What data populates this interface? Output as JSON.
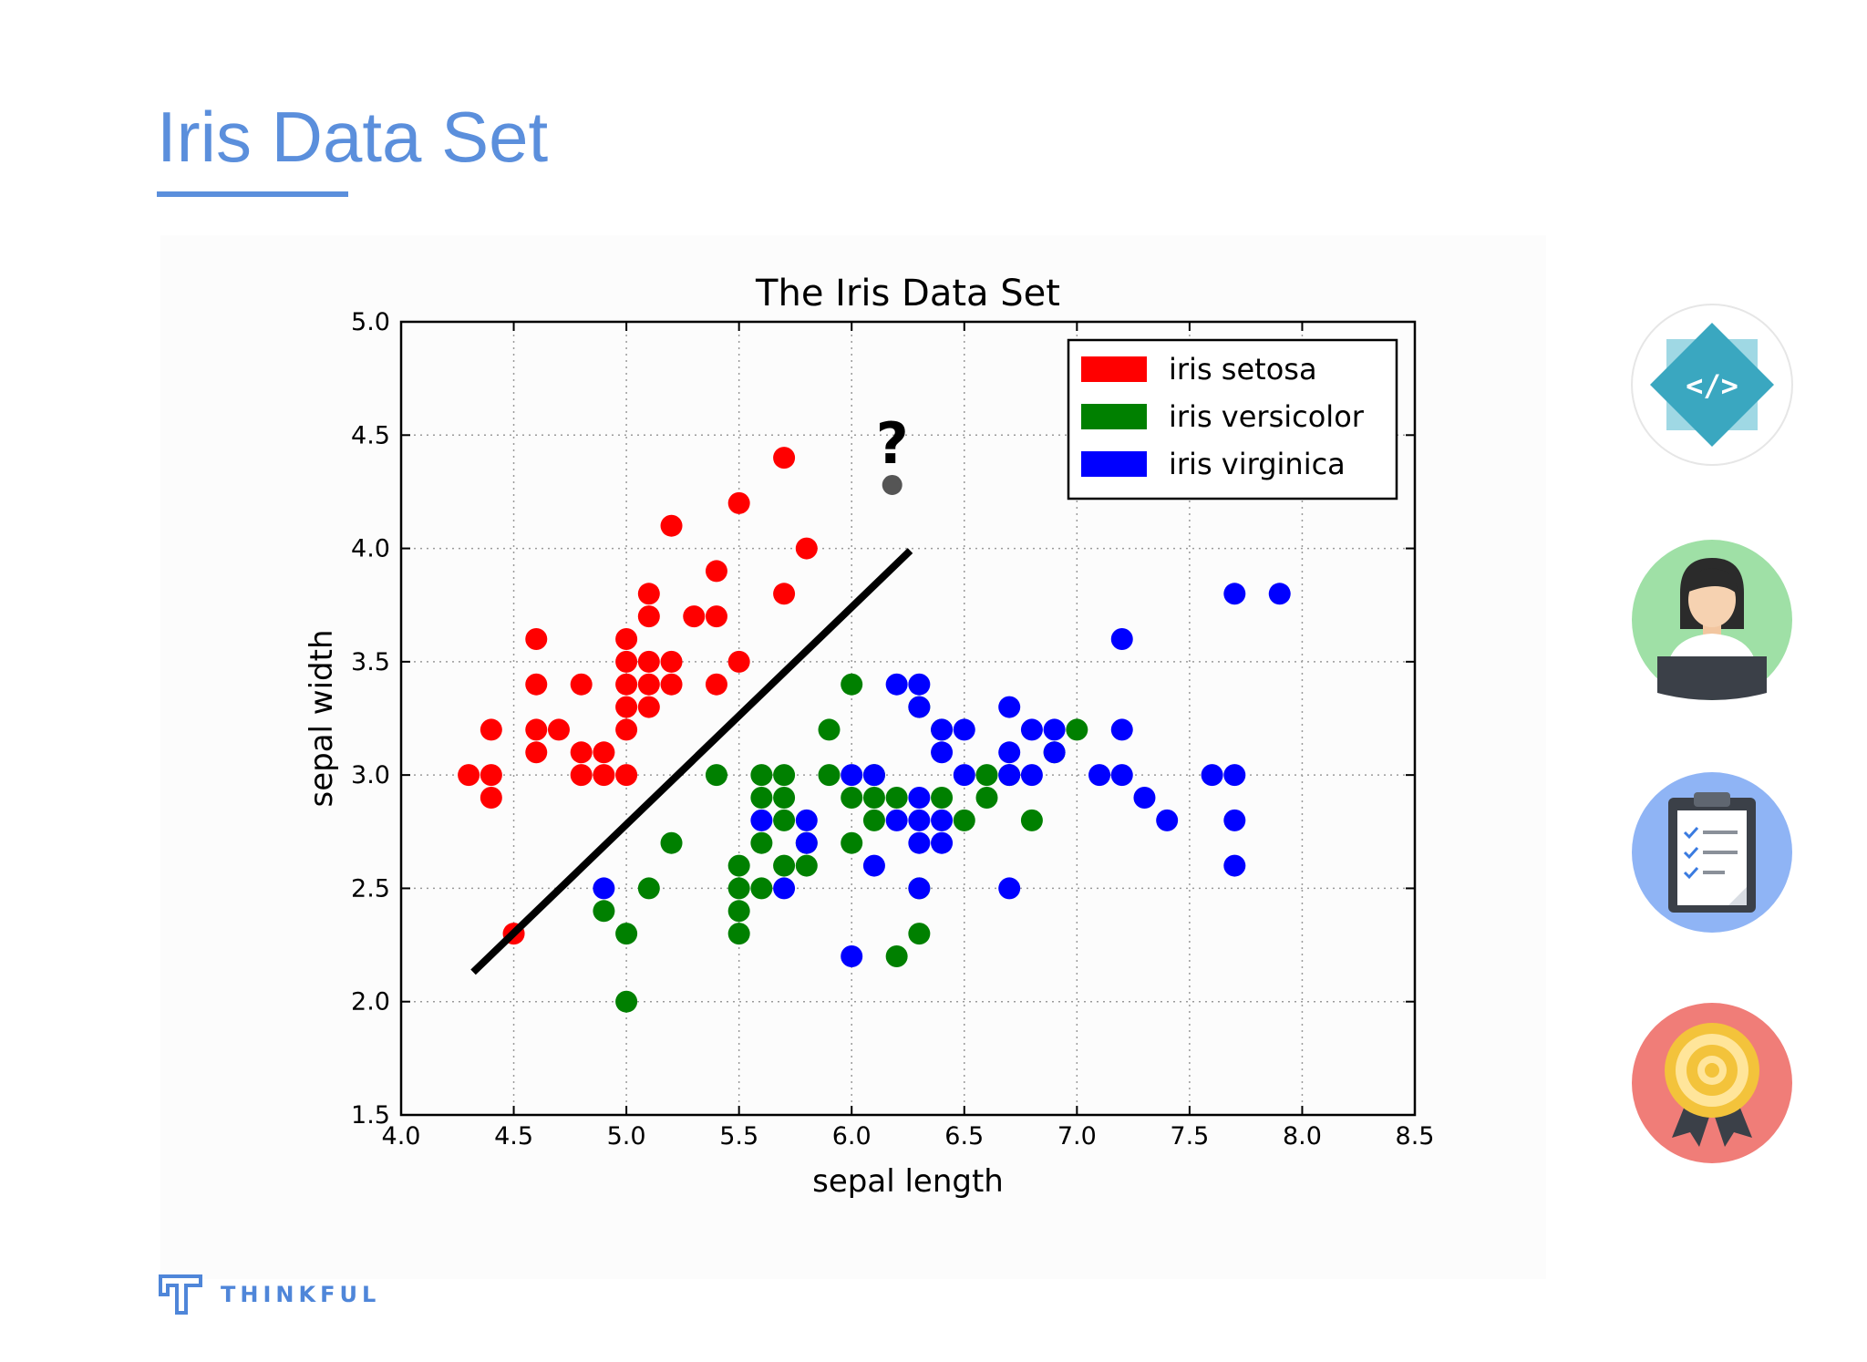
{
  "slide": {
    "title": "Iris Data Set",
    "accent_color": "#5b8fdc",
    "brand_name": "THINKFUL",
    "brand_icon": "thinkful-logo-icon"
  },
  "side_icons": [
    {
      "name": "code-icon",
      "bg": "#ffffff"
    },
    {
      "name": "student-laptop-icon",
      "bg": "#9fe0a6"
    },
    {
      "name": "clipboard-checklist-icon",
      "bg": "#8fb4f5"
    },
    {
      "name": "award-badge-icon",
      "bg": "#f07d78"
    }
  ],
  "chart_data": {
    "type": "scatter",
    "title": "The Iris Data Set",
    "xlabel": "sepal length",
    "ylabel": "sepal width",
    "xlim": [
      4.0,
      8.5
    ],
    "ylim": [
      1.5,
      5.0
    ],
    "xticks": [
      "4.0",
      "4.5",
      "5.0",
      "5.5",
      "6.0",
      "6.5",
      "7.0",
      "7.5",
      "8.0",
      "8.5"
    ],
    "yticks": [
      "1.5",
      "2.0",
      "2.5",
      "3.0",
      "3.5",
      "4.0",
      "4.5",
      "5.0"
    ],
    "grid": true,
    "legend_position": "top-right",
    "series": [
      {
        "name": "iris setosa",
        "color": "#ff0000",
        "points": [
          [
            4.3,
            3.0
          ],
          [
            4.4,
            3.0
          ],
          [
            4.4,
            2.9
          ],
          [
            4.4,
            3.2
          ],
          [
            4.5,
            2.3
          ],
          [
            4.6,
            3.1
          ],
          [
            4.6,
            3.2
          ],
          [
            4.6,
            3.4
          ],
          [
            4.6,
            3.6
          ],
          [
            4.7,
            3.2
          ],
          [
            4.8,
            3.0
          ],
          [
            4.8,
            3.1
          ],
          [
            4.8,
            3.4
          ],
          [
            4.9,
            3.0
          ],
          [
            4.9,
            3.1
          ],
          [
            5.0,
            3.0
          ],
          [
            5.0,
            3.2
          ],
          [
            5.0,
            3.3
          ],
          [
            5.0,
            3.4
          ],
          [
            5.0,
            3.5
          ],
          [
            5.0,
            3.6
          ],
          [
            5.1,
            3.3
          ],
          [
            5.1,
            3.4
          ],
          [
            5.1,
            3.5
          ],
          [
            5.1,
            3.7
          ],
          [
            5.1,
            3.8
          ],
          [
            5.2,
            3.4
          ],
          [
            5.2,
            3.5
          ],
          [
            5.2,
            4.1
          ],
          [
            5.3,
            3.7
          ],
          [
            5.4,
            3.4
          ],
          [
            5.4,
            3.7
          ],
          [
            5.4,
            3.9
          ],
          [
            5.5,
            3.5
          ],
          [
            5.5,
            4.2
          ],
          [
            5.7,
            3.8
          ],
          [
            5.7,
            4.4
          ],
          [
            5.8,
            4.0
          ]
        ]
      },
      {
        "name": "iris versicolor",
        "color": "#008000",
        "points": [
          [
            4.9,
            2.4
          ],
          [
            5.0,
            2.0
          ],
          [
            5.0,
            2.3
          ],
          [
            5.1,
            2.5
          ],
          [
            5.2,
            2.7
          ],
          [
            5.4,
            3.0
          ],
          [
            5.5,
            2.3
          ],
          [
            5.5,
            2.4
          ],
          [
            5.5,
            2.5
          ],
          [
            5.5,
            2.6
          ],
          [
            5.6,
            2.5
          ],
          [
            5.6,
            2.7
          ],
          [
            5.6,
            2.9
          ],
          [
            5.6,
            3.0
          ],
          [
            5.7,
            2.6
          ],
          [
            5.7,
            2.8
          ],
          [
            5.7,
            2.9
          ],
          [
            5.7,
            3.0
          ],
          [
            5.8,
            2.6
          ],
          [
            5.8,
            2.7
          ],
          [
            5.9,
            3.0
          ],
          [
            5.9,
            3.2
          ],
          [
            6.0,
            2.7
          ],
          [
            6.0,
            2.9
          ],
          [
            6.0,
            3.4
          ],
          [
            6.1,
            2.8
          ],
          [
            6.1,
            2.9
          ],
          [
            6.1,
            3.0
          ],
          [
            6.2,
            2.2
          ],
          [
            6.2,
            2.9
          ],
          [
            6.3,
            2.3
          ],
          [
            6.3,
            2.5
          ],
          [
            6.3,
            3.3
          ],
          [
            6.4,
            2.9
          ],
          [
            6.4,
            3.2
          ],
          [
            6.5,
            2.8
          ],
          [
            6.6,
            2.9
          ],
          [
            6.6,
            3.0
          ],
          [
            6.7,
            3.0
          ],
          [
            6.8,
            2.8
          ],
          [
            6.9,
            3.1
          ],
          [
            7.0,
            3.2
          ]
        ]
      },
      {
        "name": "iris virginica",
        "color": "#0000ff",
        "points": [
          [
            4.9,
            2.5
          ],
          [
            5.6,
            2.8
          ],
          [
            5.7,
            2.5
          ],
          [
            5.8,
            2.7
          ],
          [
            5.8,
            2.8
          ],
          [
            6.0,
            2.2
          ],
          [
            6.0,
            3.0
          ],
          [
            6.1,
            2.6
          ],
          [
            6.1,
            3.0
          ],
          [
            6.2,
            2.8
          ],
          [
            6.2,
            3.4
          ],
          [
            6.3,
            2.5
          ],
          [
            6.3,
            2.7
          ],
          [
            6.3,
            2.8
          ],
          [
            6.3,
            2.9
          ],
          [
            6.3,
            3.3
          ],
          [
            6.3,
            3.4
          ],
          [
            6.4,
            2.7
          ],
          [
            6.4,
            2.8
          ],
          [
            6.4,
            3.1
          ],
          [
            6.4,
            3.2
          ],
          [
            6.5,
            3.0
          ],
          [
            6.5,
            3.2
          ],
          [
            6.7,
            2.5
          ],
          [
            6.7,
            3.0
          ],
          [
            6.7,
            3.1
          ],
          [
            6.7,
            3.3
          ],
          [
            6.8,
            3.0
          ],
          [
            6.8,
            3.2
          ],
          [
            6.9,
            3.1
          ],
          [
            6.9,
            3.2
          ],
          [
            7.1,
            3.0
          ],
          [
            7.2,
            3.0
          ],
          [
            7.2,
            3.2
          ],
          [
            7.2,
            3.6
          ],
          [
            7.3,
            2.9
          ],
          [
            7.4,
            2.8
          ],
          [
            7.6,
            3.0
          ],
          [
            7.7,
            2.6
          ],
          [
            7.7,
            2.8
          ],
          [
            7.7,
            3.0
          ],
          [
            7.7,
            3.8
          ],
          [
            7.9,
            3.8
          ]
        ]
      }
    ],
    "unknown_point": {
      "x": 6.18,
      "y": 4.28,
      "label": "?",
      "color": "#555555"
    },
    "decision_line": {
      "x1": 4.32,
      "y1": 2.13,
      "x2": 6.26,
      "y2": 3.99,
      "color": "#000000"
    }
  }
}
